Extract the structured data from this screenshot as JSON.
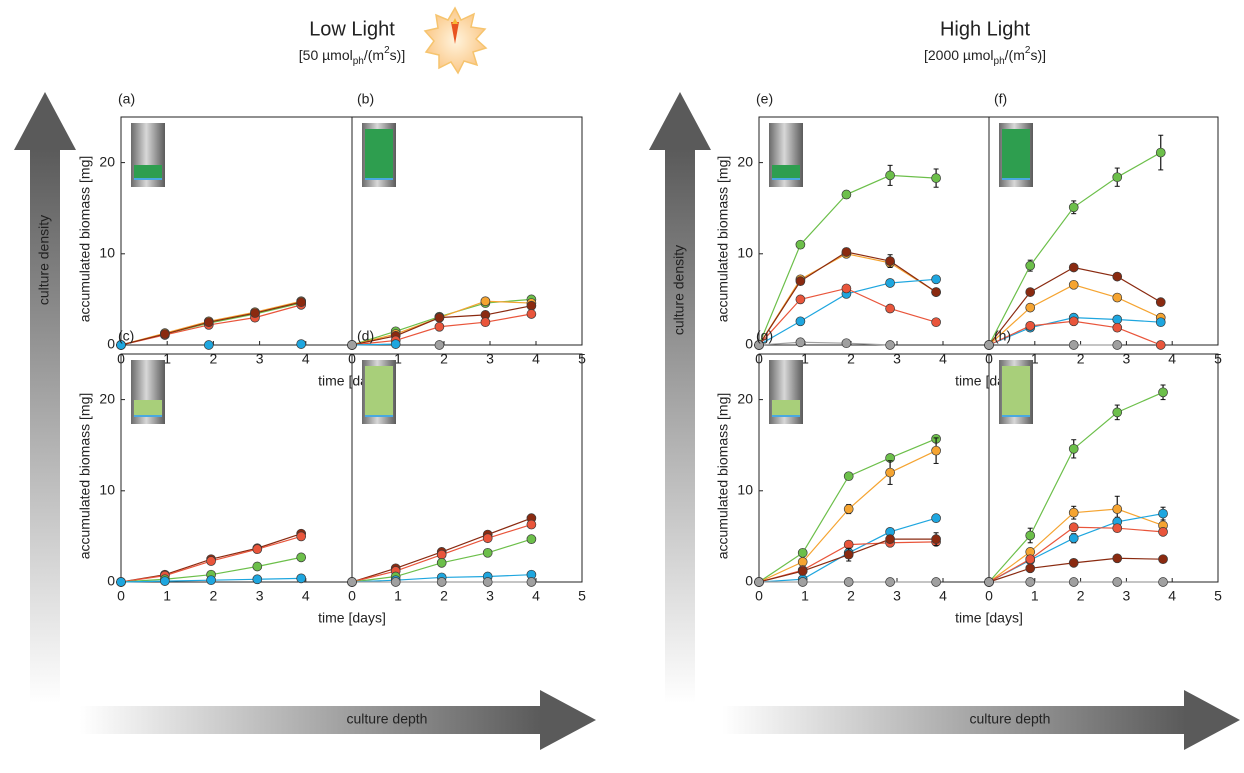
{
  "headers": [
    {
      "title": "Low Light",
      "subtitle": [
        "[50 µmol",
        "ph",
        "/(m",
        "2",
        "s)]"
      ]
    },
    {
      "title": "High Light",
      "subtitle": [
        "[2000 µmol",
        "ph",
        "/(m",
        "2",
        "s)]"
      ]
    }
  ],
  "annotations": [
    "culture density",
    "culture depth",
    "culture density",
    "culture depth"
  ],
  "chart_data": [
    {
      "type": "line",
      "title": "(a)",
      "ylabel": "accumulated biomass [mg]",
      "xlabel": "time [days]",
      "x": [
        0,
        0.95,
        1.9,
        2.9,
        3.9
      ],
      "xlim": [
        0,
        5
      ],
      "ylim": [
        0,
        25
      ],
      "xticks": [
        0,
        1,
        2,
        3,
        4
      ],
      "yticks": [
        0,
        10,
        20
      ],
      "series": [
        {
          "color": "#6cbf4a",
          "values": [
            0,
            1.2,
            2.4,
            3.4,
            4.6
          ]
        },
        {
          "color": "#f5a431",
          "values": [
            0,
            1.3,
            2.6,
            3.6,
            4.8
          ]
        },
        {
          "color": "#e9553b",
          "values": [
            0,
            1.1,
            2.2,
            3.0,
            4.4
          ]
        },
        {
          "color": "#8a2a10",
          "values": [
            0,
            1.2,
            2.5,
            3.5,
            4.7
          ]
        },
        {
          "color": "#1ea6df",
          "values": [
            0,
            null,
            0,
            null,
            0.1
          ]
        }
      ]
    },
    {
      "type": "line",
      "title": "(b)",
      "x": [
        0,
        0.95,
        1.9,
        2.9,
        3.9
      ],
      "xlim": [
        0,
        5
      ],
      "ylim": [
        0,
        25
      ],
      "xticks": [
        0,
        1,
        2,
        3,
        4,
        5
      ],
      "series": [
        {
          "color": "#6cbf4a",
          "values": [
            0,
            1.5,
            3.1,
            4.6,
            5.0
          ]
        },
        {
          "color": "#f5a431",
          "values": [
            0,
            1.2,
            3.0,
            4.8,
            4.6
          ]
        },
        {
          "color": "#8a2a10",
          "values": [
            0,
            1.0,
            3.0,
            3.3,
            4.3
          ]
        },
        {
          "color": "#e9553b",
          "values": [
            0,
            0.5,
            2.0,
            2.5,
            3.4
          ]
        },
        {
          "color": "#1ea6df",
          "values": [
            0,
            0.1,
            null,
            null,
            null
          ]
        },
        {
          "color": "#a0a0a0",
          "values": [
            0,
            null,
            0,
            null,
            null
          ]
        }
      ]
    },
    {
      "type": "line",
      "title": "(c)",
      "ylabel": "accumulated biomass [mg]",
      "xlabel": "time [days]",
      "x": [
        0,
        0.95,
        1.95,
        2.95,
        3.9
      ],
      "xlim": [
        0,
        5
      ],
      "ylim": [
        0,
        25
      ],
      "xticks": [
        0,
        1,
        2,
        3,
        4
      ],
      "yticks": [
        0,
        10,
        20
      ],
      "series": [
        {
          "color": "#8a2a10",
          "values": [
            0,
            0.8,
            2.5,
            3.7,
            5.3
          ]
        },
        {
          "color": "#e9553b",
          "values": [
            0,
            0.7,
            2.3,
            3.6,
            5.0
          ]
        },
        {
          "color": "#6cbf4a",
          "values": [
            0,
            0.3,
            0.8,
            1.7,
            2.7
          ]
        },
        {
          "color": "#1ea6df",
          "values": [
            0,
            0.1,
            0.2,
            0.3,
            0.4
          ]
        }
      ]
    },
    {
      "type": "line",
      "title": "(d)",
      "x": [
        0,
        0.95,
        1.95,
        2.95,
        3.9
      ],
      "xlim": [
        0,
        5
      ],
      "ylim": [
        0,
        25
      ],
      "xticks": [
        0,
        1,
        2,
        3,
        4,
        5
      ],
      "series": [
        {
          "color": "#8a2a10",
          "values": [
            0,
            1.5,
            3.3,
            5.2,
            7.0
          ]
        },
        {
          "color": "#e9553b",
          "values": [
            0,
            1.2,
            3.0,
            4.8,
            6.3
          ]
        },
        {
          "color": "#6cbf4a",
          "values": [
            0,
            0.6,
            2.1,
            3.2,
            4.7
          ]
        },
        {
          "color": "#1ea6df",
          "values": [
            0,
            0.2,
            0.5,
            0.6,
            0.8
          ]
        },
        {
          "color": "#a0a0a0",
          "values": [
            0,
            0,
            0,
            0,
            0
          ]
        }
      ]
    },
    {
      "type": "line",
      "title": "(e)",
      "ylabel": "accumulated biomass [mg]",
      "xlabel": "time [days]",
      "x": [
        0,
        0.9,
        1.9,
        2.85,
        3.85
      ],
      "xlim": [
        0,
        5
      ],
      "ylim": [
        0,
        25
      ],
      "xticks": [
        0,
        1,
        2,
        3,
        4
      ],
      "yticks": [
        0,
        10,
        20
      ],
      "series": [
        {
          "color": "#6cbf4a",
          "values": [
            0,
            11.0,
            16.5,
            18.6,
            18.3
          ],
          "errors": [
            0,
            0,
            0.4,
            1.1,
            1.0
          ]
        },
        {
          "color": "#f5a431",
          "values": [
            0,
            7.2,
            10.0,
            9.0,
            5.8
          ]
        },
        {
          "color": "#8a2a10",
          "values": [
            0,
            7.0,
            10.2,
            9.2,
            5.8
          ],
          "errors": [
            0,
            0,
            0.4,
            0.7,
            0
          ]
        },
        {
          "color": "#1ea6df",
          "values": [
            0,
            2.6,
            5.6,
            6.8,
            7.2
          ]
        },
        {
          "color": "#e9553b",
          "values": [
            0,
            5.0,
            6.2,
            4.0,
            2.5
          ]
        },
        {
          "color": "#a0a0a0",
          "values": [
            0,
            0.3,
            0.2,
            0,
            null
          ]
        }
      ]
    },
    {
      "type": "line",
      "title": "(f)",
      "x": [
        0,
        0.9,
        1.85,
        2.8,
        3.75
      ],
      "xlim": [
        0,
        5
      ],
      "ylim": [
        0,
        25
      ],
      "xticks": [
        0,
        1,
        2,
        3,
        4,
        5
      ],
      "series": [
        {
          "color": "#6cbf4a",
          "values": [
            0,
            8.7,
            15.1,
            18.4,
            21.1
          ],
          "errors": [
            0,
            0.6,
            0.7,
            1.0,
            1.9
          ]
        },
        {
          "color": "#8a2a10",
          "values": [
            0,
            5.8,
            8.5,
            7.5,
            4.7
          ]
        },
        {
          "color": "#f5a431",
          "values": [
            0,
            4.1,
            6.6,
            5.2,
            3.0
          ]
        },
        {
          "color": "#1ea6df",
          "values": [
            0,
            1.9,
            3.0,
            2.8,
            2.5
          ]
        },
        {
          "color": "#e9553b",
          "values": [
            0,
            2.1,
            2.6,
            1.9,
            0
          ]
        },
        {
          "color": "#a0a0a0",
          "values": [
            0,
            null,
            0,
            0,
            null
          ]
        }
      ]
    },
    {
      "type": "line",
      "title": "(g)",
      "ylabel": "accumulated biomass [mg]",
      "xlabel": "time [days]",
      "x": [
        0,
        0.95,
        1.95,
        2.85,
        3.85
      ],
      "xlim": [
        0,
        5
      ],
      "ylim": [
        0,
        25
      ],
      "xticks": [
        0,
        1,
        2,
        3,
        4
      ],
      "yticks": [
        0,
        10,
        20
      ],
      "series": [
        {
          "color": "#6cbf4a",
          "values": [
            0,
            3.2,
            11.6,
            13.6,
            15.7
          ],
          "errors": [
            0,
            0,
            0.4,
            0,
            0.3
          ]
        },
        {
          "color": "#f5a431",
          "values": [
            0,
            2.2,
            8.0,
            12.0,
            14.4
          ],
          "errors": [
            0,
            0,
            0.5,
            1.3,
            1.4
          ]
        },
        {
          "color": "#1ea6df",
          "values": [
            0,
            0.3,
            3.2,
            5.5,
            7.0
          ]
        },
        {
          "color": "#e9553b",
          "values": [
            0,
            1.3,
            4.1,
            4.3,
            4.4
          ]
        },
        {
          "color": "#8a2a10",
          "values": [
            0,
            1.2,
            3.0,
            4.7,
            4.7
          ],
          "errors": [
            0,
            0,
            0.7,
            0,
            0.7
          ]
        },
        {
          "color": "#a0a0a0",
          "values": [
            0,
            0,
            0,
            0,
            0
          ]
        }
      ]
    },
    {
      "type": "line",
      "title": "(h)",
      "x": [
        0,
        0.9,
        1.85,
        2.8,
        3.8
      ],
      "xlim": [
        0,
        5
      ],
      "ylim": [
        0,
        25
      ],
      "xticks": [
        0,
        1,
        2,
        3,
        4,
        5
      ],
      "series": [
        {
          "color": "#6cbf4a",
          "values": [
            0,
            5.1,
            14.6,
            18.6,
            20.8
          ],
          "errors": [
            0,
            0.8,
            1.0,
            0.8,
            0.8
          ]
        },
        {
          "color": "#f5a431",
          "values": [
            0,
            3.3,
            7.6,
            8.0,
            6.2
          ],
          "errors": [
            0,
            0,
            0.7,
            1.4,
            0.6
          ]
        },
        {
          "color": "#1ea6df",
          "values": [
            0,
            2.4,
            4.8,
            6.6,
            7.5
          ],
          "errors": [
            0,
            0,
            0.5,
            0.5,
            0.7
          ]
        },
        {
          "color": "#e9553b",
          "values": [
            0,
            2.5,
            6.0,
            5.9,
            5.5
          ]
        },
        {
          "color": "#8a2a10",
          "values": [
            0,
            1.5,
            2.1,
            2.6,
            2.5
          ]
        },
        {
          "color": "#a0a0a0",
          "values": [
            0,
            0,
            0,
            0,
            0
          ]
        }
      ]
    }
  ]
}
